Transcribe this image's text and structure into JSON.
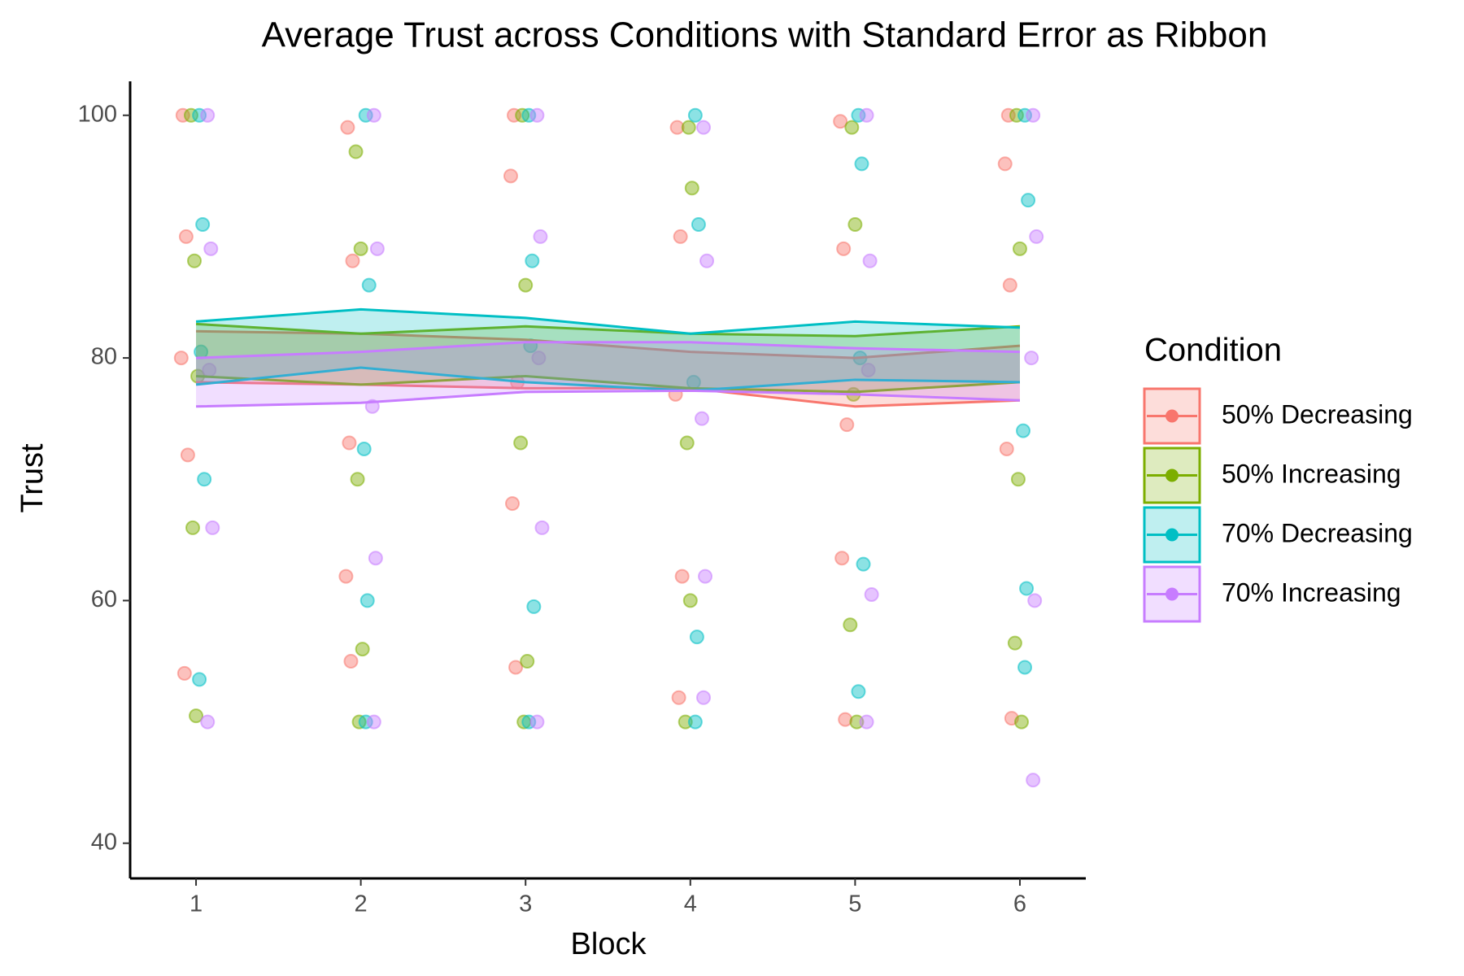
{
  "chart_data": {
    "type": "ribbon",
    "title": "Average Trust across Conditions with Standard Error as Ribbon",
    "x_label": "Block",
    "y_label": "Trust",
    "x": [
      1,
      2,
      3,
      4,
      5,
      6
    ],
    "xlim": [
      0.6,
      6.4
    ],
    "xticks": [
      1,
      2,
      3,
      4,
      5,
      6
    ],
    "ylim": [
      37.1,
      102.8
    ],
    "yticks": [
      40,
      60,
      80,
      100
    ],
    "legend_title": "Condition",
    "legend": "right",
    "series": [
      {
        "name": "50% Decreasing",
        "color": "#f8766d",
        "upper": [
          82.2,
          82.0,
          81.5,
          80.5,
          80.0,
          81.0
        ],
        "lower": [
          78.0,
          77.8,
          77.5,
          77.5,
          76.0,
          76.5
        ],
        "points_x": [
          0.92,
          0.94,
          0.91,
          0.95,
          0.93,
          1.92,
          1.95,
          1.93,
          1.91,
          1.94,
          2.93,
          2.91,
          2.95,
          2.92,
          2.94,
          3.92,
          3.94,
          3.91,
          3.95,
          3.93,
          4.91,
          4.93,
          4.95,
          4.92,
          4.94,
          5.93,
          5.91,
          5.94,
          5.92,
          5.95
        ],
        "points_y": [
          100,
          90,
          80,
          72,
          54,
          99,
          88,
          73,
          62,
          55,
          100,
          95,
          78,
          68,
          54.5,
          99,
          90,
          77,
          62,
          52,
          99.5,
          89,
          74.5,
          63.5,
          50.2,
          100,
          96,
          86,
          72.5,
          50.3
        ]
      },
      {
        "name": "50% Increasing",
        "color": "#7cae00",
        "upper": [
          82.8,
          82.0,
          82.6,
          82.0,
          81.8,
          82.6
        ],
        "lower": [
          78.5,
          77.8,
          78.5,
          77.5,
          77.2,
          78.0
        ],
        "points_x": [
          0.97,
          0.99,
          1.01,
          0.98,
          1.0,
          1.97,
          2.0,
          1.98,
          2.01,
          1.99,
          2.98,
          3.0,
          2.97,
          3.01,
          2.99,
          3.99,
          4.01,
          3.98,
          4.0,
          3.97,
          4.98,
          5.0,
          4.99,
          4.97,
          5.01,
          5.98,
          6.0,
          5.99,
          5.97,
          6.01
        ],
        "points_y": [
          100,
          88,
          78.5,
          66,
          50.5,
          97,
          89,
          70,
          56,
          50,
          100,
          86,
          73,
          55,
          50,
          99,
          94,
          73,
          60,
          50,
          99,
          91,
          77,
          58,
          50,
          100,
          89,
          70,
          56.5,
          50
        ]
      },
      {
        "name": "70% Decreasing",
        "color": "#00bfc4",
        "upper": [
          83.0,
          84.0,
          83.3,
          82.0,
          83.0,
          82.5
        ],
        "lower": [
          77.8,
          79.2,
          78.0,
          77.3,
          78.2,
          78.0
        ],
        "points_x": [
          1.02,
          1.04,
          1.03,
          1.05,
          1.02,
          2.03,
          2.05,
          2.02,
          2.04,
          2.03,
          3.02,
          3.04,
          3.03,
          3.05,
          3.02,
          4.03,
          4.05,
          4.02,
          4.04,
          4.03,
          5.02,
          5.04,
          5.03,
          5.05,
          5.02,
          6.03,
          6.05,
          6.02,
          6.04,
          6.03
        ],
        "points_y": [
          100,
          91,
          80.5,
          70,
          53.5,
          100,
          86,
          72.5,
          60,
          50,
          100,
          88,
          81,
          59.5,
          50,
          100,
          91,
          78,
          57,
          50,
          100,
          96,
          80,
          63,
          52.5,
          100,
          93,
          74,
          61,
          54.5
        ]
      },
      {
        "name": "70% Increasing",
        "color": "#c77cff",
        "upper": [
          80.0,
          80.5,
          81.3,
          81.3,
          80.8,
          80.5
        ],
        "lower": [
          76.0,
          76.3,
          77.2,
          77.3,
          77.0,
          76.5
        ],
        "points_x": [
          1.07,
          1.09,
          1.08,
          1.1,
          1.07,
          2.08,
          2.1,
          2.07,
          2.09,
          2.08,
          3.07,
          3.09,
          3.08,
          3.1,
          3.07,
          4.08,
          4.1,
          4.07,
          4.09,
          4.08,
          5.07,
          5.09,
          5.08,
          5.1,
          5.07,
          6.08,
          6.1,
          6.07,
          6.09,
          6.08
        ],
        "points_y": [
          100,
          89,
          79,
          66,
          50,
          100,
          89,
          76,
          63.5,
          50,
          100,
          90,
          80,
          66,
          50,
          99,
          88,
          75,
          62,
          52,
          100,
          88,
          79,
          60.5,
          50,
          100,
          90,
          80,
          60,
          45.2
        ]
      }
    ]
  }
}
